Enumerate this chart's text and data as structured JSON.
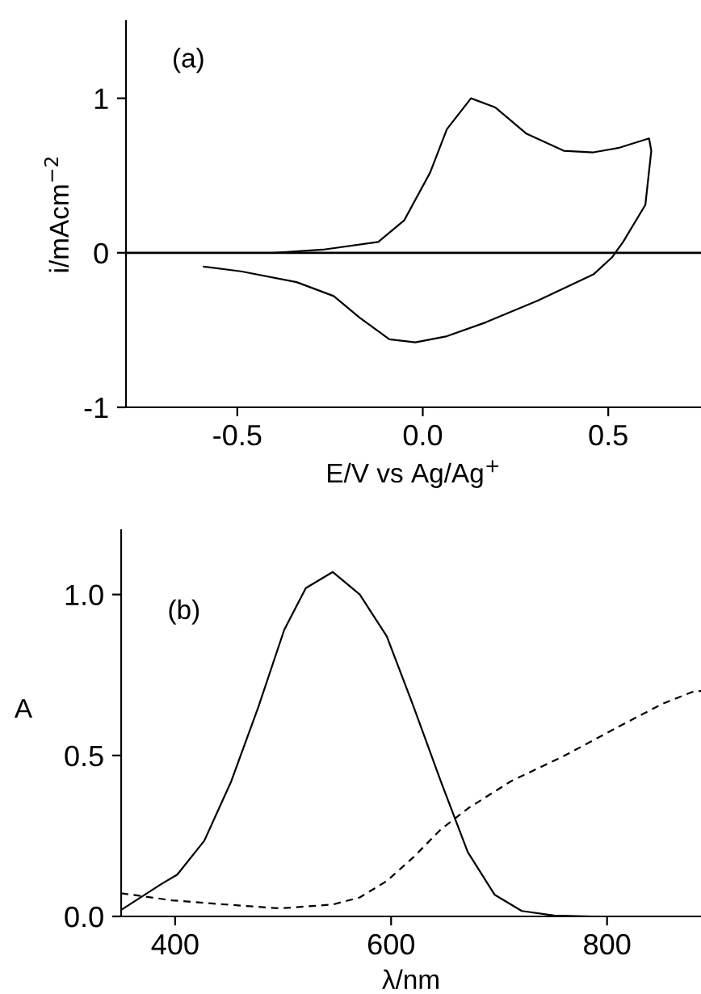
{
  "chart_data": [
    {
      "type": "line",
      "annotations": [
        "(a)"
      ],
      "xlabel": "E/V vs Ag/Ag$^{+}$",
      "ylabel": "i/mAcm$^{−2}$",
      "xlim": [
        -0.8,
        0.75
      ],
      "ylim": [
        -1,
        1.5
      ],
      "xticks": [
        {
          "value": -0.5,
          "label": "-0.5"
        },
        {
          "value": 0.0,
          "label": "0.0"
        },
        {
          "value": 0.5,
          "label": "0.5"
        }
      ],
      "yticks": [
        {
          "value": -1,
          "label": "-1"
        },
        0,
        1
      ],
      "ref_lines": [
        {
          "axis": "y",
          "value": 0,
          "color": "#000000"
        }
      ],
      "series": [
        {
          "color": "#000000",
          "line_style": "solid",
          "x": [
            -0.4,
            -0.27,
            -0.12,
            -0.05,
            0.02,
            0.065,
            0.13,
            0.196,
            0.28,
            0.38,
            0.46,
            0.53,
            0.61,
            0.616,
            0.6,
            0.54,
            0.51,
            0.46,
            0.31,
            0.17,
            0.065,
            -0.02,
            -0.09,
            -0.17,
            -0.24,
            -0.34,
            -0.49,
            -0.59
          ],
          "values": [
            0.0,
            0.02,
            0.07,
            0.21,
            0.52,
            0.8,
            1.0,
            0.94,
            0.77,
            0.66,
            0.65,
            0.68,
            0.74,
            0.66,
            0.31,
            0.07,
            -0.03,
            -0.14,
            -0.31,
            -0.45,
            -0.54,
            -0.58,
            -0.56,
            -0.42,
            -0.28,
            -0.19,
            -0.12,
            -0.09
          ]
        }
      ]
    },
    {
      "type": "line",
      "annotations": [
        "(b)"
      ],
      "xlabel": "λ/nm",
      "ylabel": "A",
      "xlim": [
        350,
        887
      ],
      "ylim": [
        0,
        1.2
      ],
      "xticks": [
        400,
        600,
        800
      ],
      "yticks": [
        {
          "value": 0,
          "label": "0.0"
        },
        {
          "value": 0.5,
          "label": "0.5"
        },
        {
          "value": 1.0,
          "label": "1.0"
        }
      ],
      "series": [
        {
          "color": "#000000",
          "line_style": "solid",
          "x": [
            350,
            387,
            402,
            427,
            452,
            477,
            501,
            521,
            546,
            571,
            596,
            621,
            646,
            671,
            696,
            721,
            751,
            786,
            836,
            887
          ],
          "values": [
            0.02,
            0.1,
            0.13,
            0.235,
            0.42,
            0.65,
            0.89,
            1.02,
            1.07,
            1.0,
            0.87,
            0.65,
            0.42,
            0.2,
            0.067,
            0.017,
            0.003,
            0.0,
            0.0,
            0.0
          ]
        },
        {
          "color": "#000000",
          "line_style": "dashed",
          "x": [
            350,
            397,
            447,
            497,
            546,
            571,
            596,
            621,
            646,
            671,
            711,
            761,
            811,
            851,
            881,
            887
          ],
          "values": [
            0.072,
            0.05,
            0.037,
            0.025,
            0.037,
            0.059,
            0.11,
            0.185,
            0.27,
            0.335,
            0.42,
            0.5,
            0.59,
            0.66,
            0.7,
            0.7
          ]
        }
      ]
    }
  ]
}
